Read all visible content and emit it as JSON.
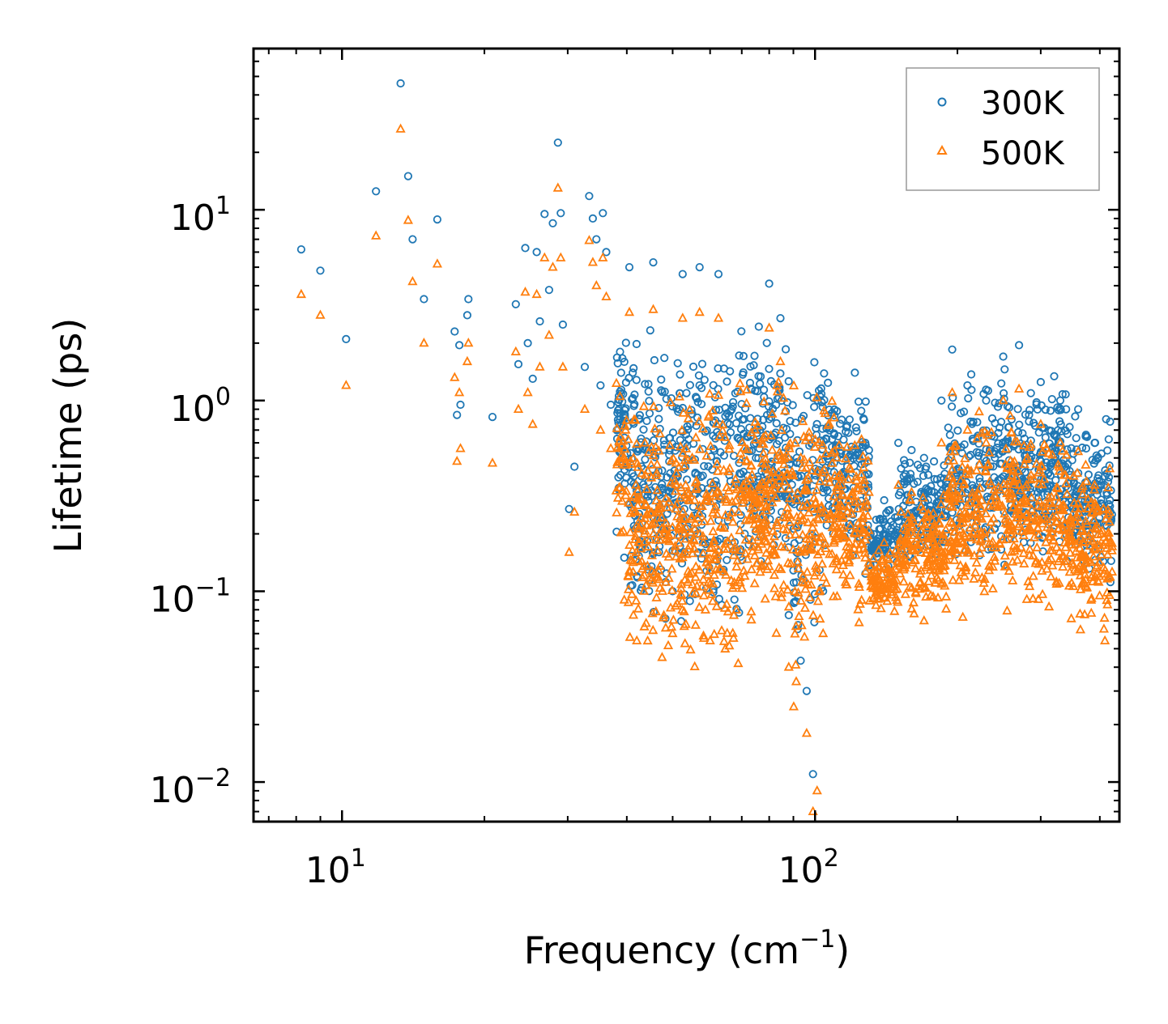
{
  "chart_data": {
    "type": "scatter",
    "xscale": "log",
    "yscale": "log",
    "xlabel": "Frequency (cm",
    "xlabel_sup": "−1",
    "xlabel_end": ")",
    "ylabel": "Lifetime (ps)",
    "xlim": [
      6.5,
      440
    ],
    "ylim": [
      0.0062,
      70
    ],
    "x_major_ticks": [
      {
        "value": 10,
        "base": "10",
        "exp": "1"
      },
      {
        "value": 100,
        "base": "10",
        "exp": "2"
      }
    ],
    "y_major_ticks": [
      {
        "value": 10,
        "base": "10",
        "exp": "1"
      },
      {
        "value": 1,
        "base": "10",
        "exp": "0"
      },
      {
        "value": 0.1,
        "base": "10",
        "exp": "−1"
      },
      {
        "value": 0.01,
        "base": "10",
        "exp": "−2"
      }
    ],
    "legend_position": "top-right",
    "series": [
      {
        "name": "300K",
        "marker": "circle-open",
        "color": "#1f77b4",
        "points": [
          [
            8.2,
            6.2
          ],
          [
            9.0,
            4.8
          ],
          [
            10.2,
            2.1
          ],
          [
            11.8,
            12.5
          ],
          [
            13.3,
            46
          ],
          [
            13.8,
            15
          ],
          [
            14.1,
            7.0
          ],
          [
            14.9,
            3.4
          ],
          [
            15.9,
            8.9
          ],
          [
            17.3,
            2.3
          ],
          [
            17.5,
            0.84
          ],
          [
            17.7,
            1.95
          ],
          [
            17.8,
            0.95
          ],
          [
            18.4,
            2.8
          ],
          [
            18.5,
            3.4
          ],
          [
            20.8,
            0.82
          ],
          [
            23.3,
            3.2
          ],
          [
            23.6,
            1.55
          ],
          [
            24.4,
            6.3
          ],
          [
            24.7,
            2.0
          ],
          [
            25.3,
            1.3
          ],
          [
            25.8,
            6.0
          ],
          [
            26.2,
            2.6
          ],
          [
            26.8,
            9.5
          ],
          [
            27.4,
            3.8
          ],
          [
            27.9,
            8.5
          ],
          [
            28.6,
            22.5
          ],
          [
            29.0,
            9.6
          ],
          [
            29.3,
            2.5
          ],
          [
            30.2,
            0.27
          ],
          [
            31.0,
            0.45
          ],
          [
            32.6,
            1.5
          ],
          [
            33.3,
            11.8
          ],
          [
            33.9,
            9.0
          ],
          [
            34.5,
            7.0
          ],
          [
            35.2,
            1.2
          ],
          [
            35.6,
            9.6
          ],
          [
            36.2,
            6.0
          ],
          [
            37.0,
            0.95
          ],
          [
            38.7,
            1.8
          ],
          [
            39.5,
            0.15
          ],
          [
            40.5,
            5.0
          ],
          [
            42.0,
            0.12
          ],
          [
            43.6,
            0.35
          ],
          [
            45.5,
            5.3
          ],
          [
            47.5,
            0.2
          ],
          [
            50.0,
            0.1
          ],
          [
            52.5,
            4.6
          ],
          [
            55.0,
            0.85
          ],
          [
            57.0,
            5.0
          ],
          [
            60.0,
            0.18
          ],
          [
            62.5,
            4.6
          ],
          [
            66.0,
            0.75
          ],
          [
            71.0,
            0.2
          ],
          [
            75.0,
            0.5
          ],
          [
            80.0,
            4.1
          ],
          [
            84.5,
            2.7
          ],
          [
            88.0,
            0.075
          ],
          [
            91.5,
            0.5
          ],
          [
            96.0,
            0.03
          ],
          [
            99.0,
            0.011
          ],
          [
            104.0,
            0.1
          ],
          [
            112.0,
            0.65
          ],
          [
            120.0,
            0.55
          ],
          [
            130.0,
            0.55
          ],
          [
            140.0,
            0.3
          ],
          [
            150.0,
            0.6
          ],
          [
            160.0,
            0.55
          ],
          [
            170.0,
            0.5
          ],
          [
            185.0,
            1.0
          ],
          [
            195.0,
            1.85
          ],
          [
            210.0,
            1.2
          ],
          [
            230.0,
            1.0
          ],
          [
            250.0,
            1.7
          ],
          [
            270.0,
            1.95
          ],
          [
            300.0,
            1.25
          ],
          [
            330.0,
            1.0
          ],
          [
            360.0,
            0.9
          ],
          [
            390.0,
            0.6
          ],
          [
            410.0,
            0.4
          ],
          [
            420.0,
            0.3
          ]
        ]
      },
      {
        "name": "500K",
        "marker": "triangle-open",
        "color": "#ff7f0e",
        "points": [
          [
            8.2,
            3.6
          ],
          [
            9.0,
            2.8
          ],
          [
            10.2,
            1.2
          ],
          [
            11.8,
            7.3
          ],
          [
            13.3,
            26.5
          ],
          [
            13.8,
            8.8
          ],
          [
            14.1,
            4.2
          ],
          [
            14.9,
            2.0
          ],
          [
            15.9,
            5.2
          ],
          [
            17.3,
            1.32
          ],
          [
            17.5,
            0.48
          ],
          [
            17.7,
            1.1
          ],
          [
            17.8,
            0.56
          ],
          [
            18.4,
            1.6
          ],
          [
            18.5,
            2.0
          ],
          [
            20.8,
            0.47
          ],
          [
            23.3,
            1.8
          ],
          [
            23.6,
            0.9
          ],
          [
            24.4,
            3.7
          ],
          [
            24.7,
            1.1
          ],
          [
            25.3,
            0.75
          ],
          [
            25.8,
            3.6
          ],
          [
            26.2,
            1.5
          ],
          [
            26.8,
            5.6
          ],
          [
            27.4,
            2.2
          ],
          [
            27.9,
            5.0
          ],
          [
            28.6,
            13.0
          ],
          [
            29.0,
            5.6
          ],
          [
            29.3,
            1.5
          ],
          [
            30.2,
            0.16
          ],
          [
            31.0,
            0.26
          ],
          [
            32.6,
            0.9
          ],
          [
            33.3,
            6.9
          ],
          [
            33.9,
            5.3
          ],
          [
            34.5,
            4.0
          ],
          [
            35.2,
            0.7
          ],
          [
            35.6,
            5.6
          ],
          [
            36.2,
            3.5
          ],
          [
            37.0,
            0.56
          ],
          [
            38.7,
            1.05
          ],
          [
            39.5,
            0.09
          ],
          [
            40.5,
            2.9
          ],
          [
            42.0,
            0.055
          ],
          [
            43.6,
            0.2
          ],
          [
            45.5,
            3.0
          ],
          [
            47.5,
            0.045
          ],
          [
            50.0,
            0.06
          ],
          [
            52.5,
            2.7
          ],
          [
            55.0,
            0.5
          ],
          [
            57.0,
            2.9
          ],
          [
            60.0,
            0.055
          ],
          [
            62.5,
            2.7
          ],
          [
            66.0,
            0.44
          ],
          [
            71.0,
            0.12
          ],
          [
            75.0,
            0.3
          ],
          [
            80.0,
            2.4
          ],
          [
            84.5,
            1.6
          ],
          [
            88.0,
            0.04
          ],
          [
            91.5,
            0.3
          ],
          [
            96.0,
            0.018
          ],
          [
            99.0,
            0.007
          ],
          [
            101.0,
            0.009
          ],
          [
            104.0,
            0.06
          ],
          [
            112.0,
            0.4
          ],
          [
            120.0,
            0.33
          ],
          [
            130.0,
            0.33
          ],
          [
            140.0,
            0.18
          ],
          [
            150.0,
            0.36
          ],
          [
            160.0,
            0.33
          ],
          [
            170.0,
            0.07
          ],
          [
            185.0,
            0.6
          ],
          [
            195.0,
            1.1
          ],
          [
            210.0,
            0.7
          ],
          [
            230.0,
            0.6
          ],
          [
            250.0,
            1.0
          ],
          [
            270.0,
            1.15
          ],
          [
            300.0,
            0.75
          ],
          [
            330.0,
            0.6
          ],
          [
            360.0,
            0.54
          ],
          [
            390.0,
            0.36
          ],
          [
            410.0,
            0.055
          ],
          [
            420.0,
            0.18
          ]
        ]
      }
    ]
  }
}
